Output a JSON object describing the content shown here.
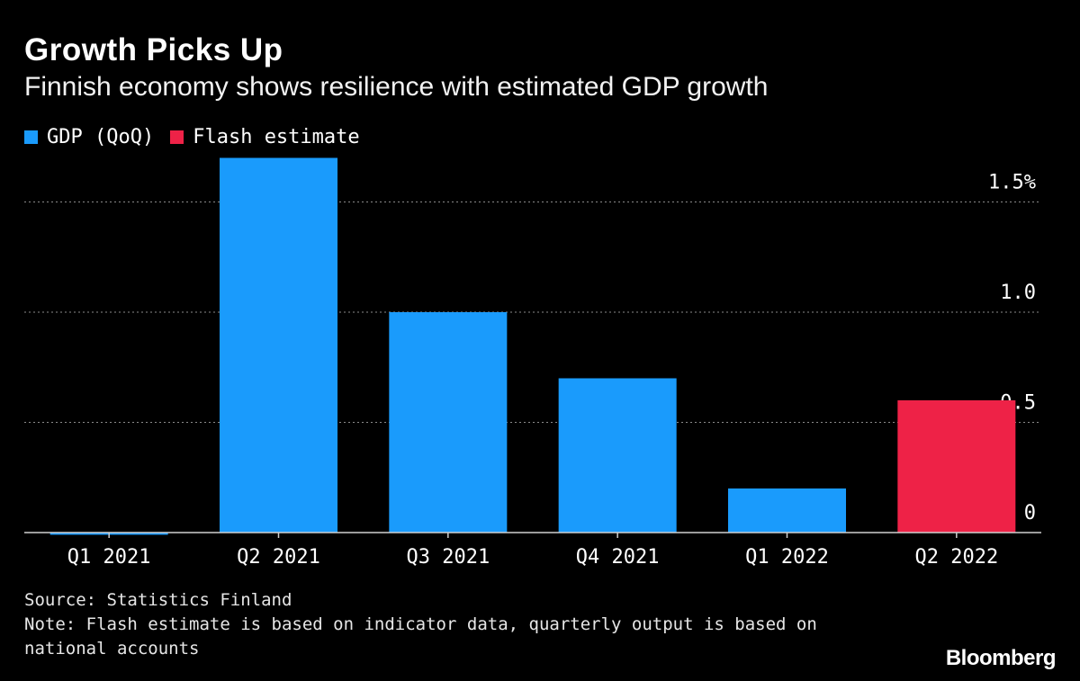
{
  "title": "Growth Picks Up",
  "subtitle": "Finnish economy shows resilience with estimated GDP growth",
  "legend": [
    {
      "label": "GDP (QoQ)",
      "color": "#1a9bfc"
    },
    {
      "label": "Flash estimate",
      "color": "#ee2247"
    }
  ],
  "footer": {
    "source": "Source: Statistics Finland",
    "note": "Note: Flash estimate is based on indicator data, quarterly output is based on national accounts"
  },
  "brand": "Bloomberg",
  "chart_data": {
    "type": "bar",
    "categories": [
      "Q1 2021",
      "Q2 2021",
      "Q3 2021",
      "Q4 2021",
      "Q1 2022",
      "Q2 2022"
    ],
    "values": [
      -0.01,
      1.7,
      1.0,
      0.7,
      0.2,
      0.6
    ],
    "series_of_bar": [
      "GDP (QoQ)",
      "GDP (QoQ)",
      "GDP (QoQ)",
      "GDP (QoQ)",
      "GDP (QoQ)",
      "Flash estimate"
    ],
    "ylim": [
      0,
      1.5
    ],
    "yticks": [
      {
        "value": 0,
        "label": "0"
      },
      {
        "value": 0.5,
        "label": "0.5"
      },
      {
        "value": 1.0,
        "label": "1.0"
      },
      {
        "value": 1.5,
        "label": "1.5%"
      }
    ],
    "grid": true,
    "grid_style": "dotted",
    "y_axis_side": "right",
    "legend_position": "top-left"
  }
}
